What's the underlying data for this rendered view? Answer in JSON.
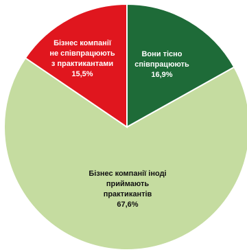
{
  "chart_data": {
    "type": "pie",
    "slices": [
      {
        "label_lines": [
          "Вони тісно",
          "співпрацюють"
        ],
        "value": 16.9,
        "value_text": "16,9%",
        "color": "#1e6b38",
        "text_color": "#ffffff"
      },
      {
        "label_lines": [
          "Бізнес компанії іноді",
          "приймають",
          "практикантів"
        ],
        "value": 67.6,
        "value_text": "67,6%",
        "color": "#c5dca0",
        "text_color": "#111111"
      },
      {
        "label_lines": [
          "Бізнес компанії",
          "не співпрацюють",
          "з практикантами"
        ],
        "value": 15.5,
        "value_text": "15,5%",
        "color": "#e0161e",
        "text_color": "#ffffff"
      }
    ],
    "start": "12 o'clock",
    "direction": "clockwise",
    "legend": "none"
  }
}
